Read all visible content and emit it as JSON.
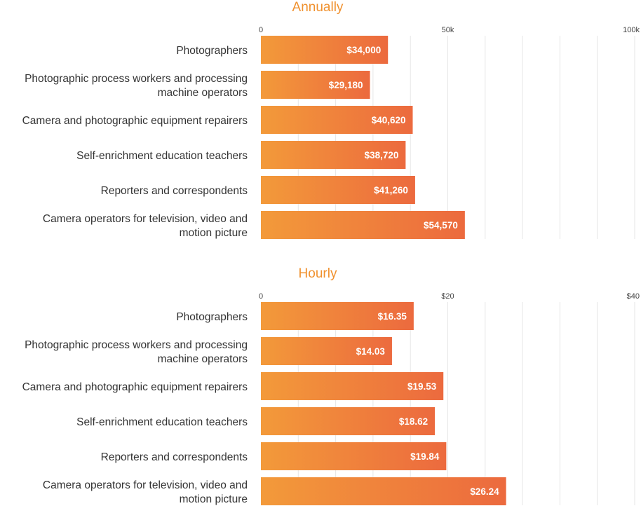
{
  "colors": {
    "title": "#F0912E",
    "bar_start": "#F39A3A",
    "bar_end": "#EC6A3E",
    "label_text": "#333333",
    "tick_text": "#444444",
    "value_text": "#ffffff",
    "grid": "#e6e6e6"
  },
  "chart_data": [
    {
      "type": "bar",
      "orientation": "horizontal",
      "title": "Annually",
      "categories": [
        [
          "Photographers"
        ],
        [
          "Photographic process workers and processing",
          "machine operators"
        ],
        [
          "Camera and photographic equipment repairers"
        ],
        [
          "Self-enrichment education teachers"
        ],
        [
          "Reporters and correspondents"
        ],
        [
          "Camera operators for television, video and",
          "motion picture"
        ]
      ],
      "values": [
        34000,
        29180,
        40620,
        38720,
        41260,
        54570
      ],
      "value_labels": [
        "$34,000",
        "$29,180",
        "$40,620",
        "$38,720",
        "$41,260",
        "$54,570"
      ],
      "xlim": [
        0,
        100000
      ],
      "ticks": [
        0,
        50000,
        100000
      ],
      "tick_labels": [
        "0",
        "50k",
        "100k"
      ],
      "grid": true
    },
    {
      "type": "bar",
      "orientation": "horizontal",
      "title": "Hourly",
      "categories": [
        [
          "Photographers"
        ],
        [
          "Photographic process workers and processing",
          "machine operators"
        ],
        [
          "Camera and photographic equipment repairers"
        ],
        [
          "Self-enrichment education teachers"
        ],
        [
          "Reporters and correspondents"
        ],
        [
          "Camera operators for television, video and",
          "motion picture"
        ]
      ],
      "values": [
        16.35,
        14.03,
        19.53,
        18.62,
        19.84,
        26.24
      ],
      "value_labels": [
        "$16.35",
        "$14.03",
        "$19.53",
        "$18.62",
        "$19.84",
        "$26.24"
      ],
      "xlim": [
        0,
        40
      ],
      "ticks": [
        0,
        20,
        40
      ],
      "tick_labels": [
        "0",
        "$20",
        "$40"
      ],
      "grid": true
    }
  ]
}
